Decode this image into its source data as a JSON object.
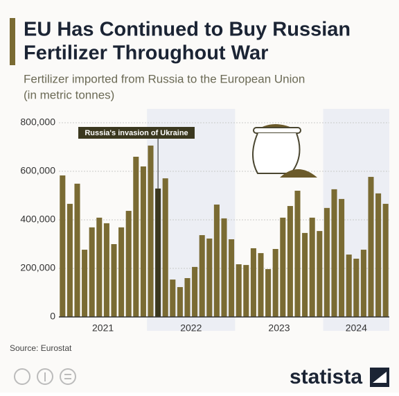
{
  "chart_data": {
    "type": "bar",
    "title": [
      "EU Has Continued to Buy Russian",
      "Fertilizer Throughout War"
    ],
    "subtitle": [
      "Fertilizer imported from Russia to the European Union",
      "(in metric tonnes)"
    ],
    "categories": [
      null,
      null,
      null,
      null,
      null,
      null,
      null,
      null,
      null,
      null,
      null,
      null,
      null,
      null,
      null,
      null,
      null,
      null,
      null,
      null,
      null,
      null,
      null,
      null,
      null,
      null,
      null,
      null,
      null,
      null,
      null,
      null,
      null,
      null,
      null,
      null,
      null,
      null,
      null,
      null,
      null,
      null,
      null,
      null,
      null
    ],
    "year_labels": [
      "2021",
      "2022",
      "2023",
      "2024"
    ],
    "values": [
      583000,
      466000,
      549000,
      277000,
      369000,
      409000,
      386000,
      300000,
      369000,
      437000,
      660000,
      620000,
      706000,
      529000,
      571000,
      154000,
      123000,
      160000,
      206000,
      337000,
      323000,
      463000,
      406000,
      320000,
      217000,
      214000,
      283000,
      263000,
      197000,
      280000,
      409000,
      457000,
      520000,
      346000,
      409000,
      354000,
      449000,
      526000,
      486000,
      257000,
      240000,
      277000,
      577000,
      509000,
      466000
    ],
    "color": "#7a6b33",
    "highlight": {
      "index": 13,
      "color": "#3b381f"
    },
    "annotation": {
      "text": "Russia's invasion of Ukraine",
      "index": 13
    },
    "ylim": [
      0,
      800000
    ],
    "yticks": [
      0,
      {
        "value": 200000,
        "label": "200,000"
      },
      {
        "value": 400000,
        "label": "400,000"
      },
      {
        "value": 600000,
        "label": "600,000"
      },
      {
        "value": 800000,
        "label": "800,000"
      }
    ],
    "grid": true,
    "source": "Source: Eurostat",
    "brand": "statista"
  }
}
